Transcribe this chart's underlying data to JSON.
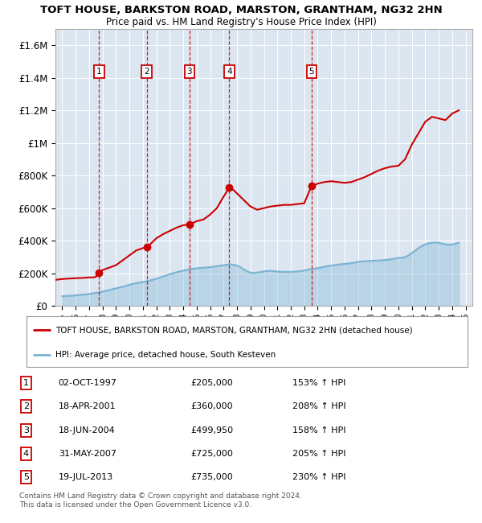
{
  "title": "TOFT HOUSE, BARKSTON ROAD, MARSTON, GRANTHAM, NG32 2HN",
  "subtitle": "Price paid vs. HM Land Registry's House Price Index (HPI)",
  "bg_color": "#dce6f1",
  "plot_bg_color": "#dce6f1",
  "hpi_color": "#7ab3d4",
  "price_color": "#cc0000",
  "ylim": [
    0,
    1700000
  ],
  "yticks": [
    0,
    200000,
    400000,
    600000,
    800000,
    1000000,
    1200000,
    1400000,
    1600000
  ],
  "ytick_labels": [
    "£0",
    "£200K",
    "£400K",
    "£600K",
    "£800K",
    "£1M",
    "£1.2M",
    "£1.4M",
    "£1.6M"
  ],
  "xmin": 1994.5,
  "xmax": 2025.5,
  "sale_dates": [
    1997.75,
    2001.29,
    2004.46,
    2007.42,
    2013.54
  ],
  "sale_prices": [
    205000,
    360000,
    499950,
    725000,
    735000
  ],
  "sale_labels": [
    "1",
    "2",
    "3",
    "4",
    "5"
  ],
  "sale_info": [
    [
      "1",
      "02-OCT-1997",
      "£205,000",
      "153% ↑ HPI"
    ],
    [
      "2",
      "18-APR-2001",
      "£360,000",
      "208% ↑ HPI"
    ],
    [
      "3",
      "18-JUN-2004",
      "£499,950",
      "158% ↑ HPI"
    ],
    [
      "4",
      "31-MAY-2007",
      "£725,000",
      "205% ↑ HPI"
    ],
    [
      "5",
      "19-JUL-2013",
      "£735,000",
      "230% ↑ HPI"
    ]
  ],
  "legend_label_red": "TOFT HOUSE, BARKSTON ROAD, MARSTON, GRANTHAM, NG32 2HN (detached house)",
  "legend_label_blue": "HPI: Average price, detached house, South Kesteven",
  "footer": "Contains HM Land Registry data © Crown copyright and database right 2024.\nThis data is licensed under the Open Government Licence v3.0.",
  "hpi_x": [
    1995,
    1995.25,
    1995.5,
    1995.75,
    1996,
    1996.25,
    1996.5,
    1996.75,
    1997,
    1997.25,
    1997.5,
    1997.75,
    1998,
    1998.25,
    1998.5,
    1998.75,
    1999,
    1999.25,
    1999.5,
    1999.75,
    2000,
    2000.25,
    2000.5,
    2000.75,
    2001,
    2001.25,
    2001.5,
    2001.75,
    2002,
    2002.25,
    2002.5,
    2002.75,
    2003,
    2003.25,
    2003.5,
    2003.75,
    2004,
    2004.25,
    2004.5,
    2004.75,
    2005,
    2005.25,
    2005.5,
    2005.75,
    2006,
    2006.25,
    2006.5,
    2006.75,
    2007,
    2007.25,
    2007.5,
    2007.75,
    2008,
    2008.25,
    2008.5,
    2008.75,
    2009,
    2009.25,
    2009.5,
    2009.75,
    2010,
    2010.25,
    2010.5,
    2010.75,
    2011,
    2011.25,
    2011.5,
    2011.75,
    2012,
    2012.25,
    2012.5,
    2012.75,
    2013,
    2013.25,
    2013.5,
    2013.75,
    2014,
    2014.25,
    2014.5,
    2014.75,
    2015,
    2015.25,
    2015.5,
    2015.75,
    2016,
    2016.25,
    2016.5,
    2016.75,
    2017,
    2017.25,
    2017.5,
    2017.75,
    2018,
    2018.25,
    2018.5,
    2018.75,
    2019,
    2019.25,
    2019.5,
    2019.75,
    2020,
    2020.25,
    2020.5,
    2020.75,
    2021,
    2021.25,
    2021.5,
    2021.75,
    2022,
    2022.25,
    2022.5,
    2022.75,
    2023,
    2023.25,
    2023.5,
    2023.75,
    2024,
    2024.25,
    2024.5
  ],
  "hpi_y": [
    60000,
    61000,
    62000,
    63000,
    65000,
    67000,
    69000,
    71000,
    74000,
    77000,
    80000,
    83000,
    88000,
    93000,
    98000,
    103000,
    108000,
    113000,
    118000,
    124000,
    130000,
    136000,
    140000,
    143000,
    147000,
    151000,
    156000,
    161000,
    167000,
    174000,
    181000,
    188000,
    195000,
    201000,
    207000,
    212000,
    217000,
    221000,
    225000,
    228000,
    231000,
    233000,
    235000,
    236000,
    238000,
    241000,
    244000,
    247000,
    250000,
    253000,
    255000,
    253000,
    248000,
    238000,
    225000,
    212000,
    205000,
    202000,
    205000,
    208000,
    212000,
    215000,
    215000,
    213000,
    211000,
    210000,
    209000,
    209000,
    209000,
    210000,
    212000,
    214000,
    218000,
    222000,
    226000,
    228000,
    232000,
    236000,
    241000,
    245000,
    248000,
    251000,
    254000,
    256000,
    258000,
    260000,
    263000,
    266000,
    270000,
    273000,
    275000,
    276000,
    277000,
    278000,
    279000,
    280000,
    282000,
    284000,
    287000,
    291000,
    295000,
    295000,
    300000,
    310000,
    325000,
    340000,
    355000,
    368000,
    378000,
    385000,
    388000,
    390000,
    388000,
    383000,
    378000,
    376000,
    378000,
    382000,
    388000
  ],
  "price_x": [
    1994.5,
    1995,
    1995.5,
    1996,
    1996.5,
    1997,
    1997.25,
    1997.5,
    1997.75,
    1998,
    1998.5,
    1999,
    1999.5,
    2000,
    2000.5,
    2001,
    2001.29,
    2001.5,
    2001.75,
    2002,
    2002.5,
    2003,
    2003.5,
    2004,
    2004.46,
    2004.75,
    2005,
    2005.5,
    2006,
    2006.5,
    2007,
    2007.42,
    2007.75,
    2008,
    2008.5,
    2009,
    2009.5,
    2010,
    2010.5,
    2011,
    2011.5,
    2012,
    2012.5,
    2013,
    2013.54,
    2013.75,
    2014,
    2014.5,
    2015,
    2015.5,
    2016,
    2016.5,
    2017,
    2017.5,
    2018,
    2018.5,
    2019,
    2019.5,
    2020,
    2020.5,
    2021,
    2021.5,
    2022,
    2022.5,
    2023,
    2023.5,
    2024,
    2024.5
  ],
  "price_y": [
    160000,
    165000,
    168000,
    170000,
    172000,
    175000,
    175000,
    178000,
    205000,
    220000,
    235000,
    250000,
    280000,
    310000,
    340000,
    355000,
    360000,
    375000,
    395000,
    415000,
    440000,
    460000,
    480000,
    495000,
    499950,
    510000,
    520000,
    530000,
    560000,
    600000,
    670000,
    725000,
    710000,
    690000,
    650000,
    610000,
    590000,
    600000,
    610000,
    615000,
    620000,
    620000,
    625000,
    630000,
    735000,
    740000,
    750000,
    760000,
    765000,
    760000,
    755000,
    760000,
    775000,
    790000,
    810000,
    830000,
    845000,
    855000,
    860000,
    900000,
    990000,
    1060000,
    1130000,
    1160000,
    1150000,
    1140000,
    1180000,
    1200000
  ]
}
